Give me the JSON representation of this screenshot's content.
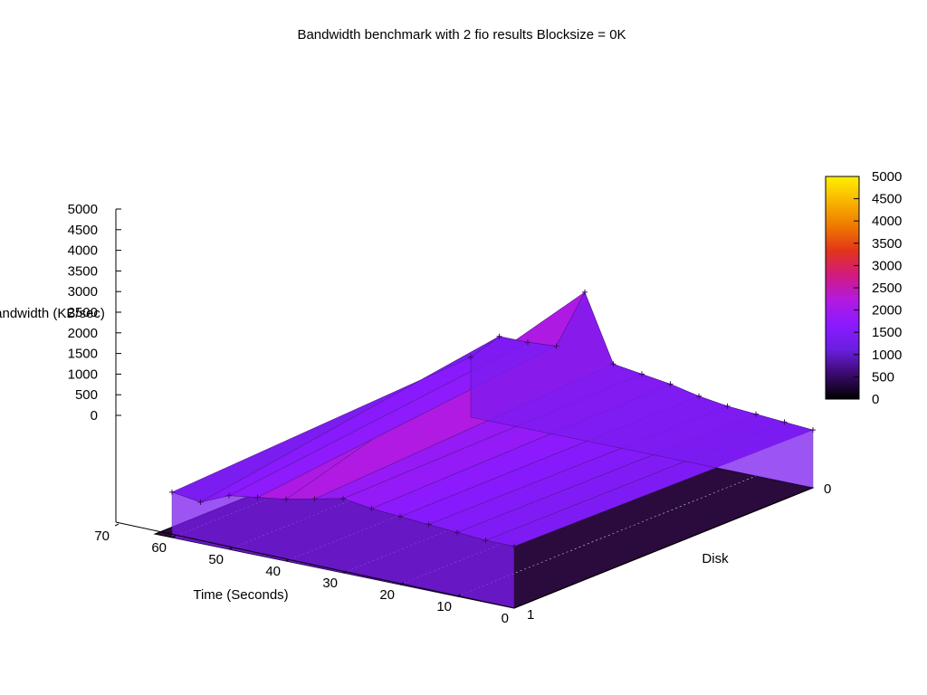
{
  "chart_data": {
    "type": "surface3d",
    "title": "Bandwidth benchmark with 2 fio results  Blocksize = 0K",
    "zlabel": "Bandwidth (KB/sec)",
    "xlabel": "Time (Seconds)",
    "ylabel": "Disk",
    "x_ticks": [
      "0",
      "10",
      "20",
      "30",
      "40",
      "50",
      "60",
      "70"
    ],
    "y_ticks": [
      "0",
      "1"
    ],
    "z_ticks": [
      "0",
      "500",
      "1000",
      "1500",
      "2000",
      "2500",
      "3000",
      "3500",
      "4000",
      "4500",
      "5000"
    ],
    "xlim": [
      0,
      70
    ],
    "ylim": [
      0,
      1
    ],
    "zlim": [
      0,
      5000
    ],
    "colorbar": {
      "min": 0,
      "max": 5000,
      "ticks": [
        "0",
        "500",
        "1000",
        "1500",
        "2000",
        "2500",
        "3000",
        "3500",
        "4000",
        "4500",
        "5000"
      ],
      "palette": [
        "#000000",
        "#3a0a6b",
        "#6a1ee0",
        "#8a1aff",
        "#b21ae0",
        "#d11a80",
        "#e3341a",
        "#ef7a00",
        "#f8b400",
        "#fff000"
      ]
    },
    "series": [
      {
        "disk": 0,
        "x": [
          0,
          5,
          10,
          15,
          20,
          25,
          30,
          35,
          40,
          45,
          50,
          55,
          60
        ],
        "values": [
          1400,
          1450,
          1500,
          1550,
          1650,
          1800,
          1900,
          2000,
          3600,
          2150,
          2100,
          2100,
          1450
        ]
      },
      {
        "disk": 1,
        "x": [
          0,
          5,
          10,
          15,
          20,
          25,
          30,
          35,
          40,
          45,
          50,
          55,
          60
        ],
        "values": [
          1500,
          1500,
          1550,
          1600,
          1650,
          1700,
          1800,
          1650,
          1500,
          1400,
          1300,
          1000,
          1100
        ]
      }
    ],
    "grid": true,
    "legend": "colorbar-right"
  }
}
